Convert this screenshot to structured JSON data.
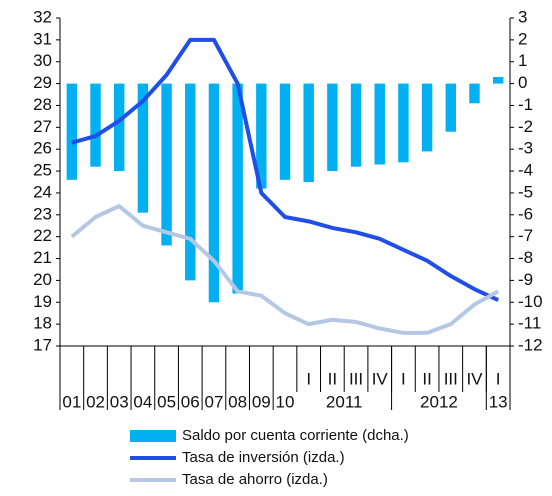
{
  "chart_data": {
    "type": "combo",
    "categories": [
      "01",
      "02",
      "03",
      "04",
      "05",
      "06",
      "07",
      "08",
      "09",
      "10",
      "I",
      "II",
      "III",
      "IV",
      "I",
      "II",
      "III",
      "IV",
      "I"
    ],
    "category_groups": [
      {
        "label": "2011",
        "size": 4
      },
      {
        "label": "2012",
        "size": 4
      },
      {
        "label": "13",
        "size": 1
      }
    ],
    "series": [
      {
        "name": "Saldo por cuenta corriente (dcha.)",
        "type": "bar",
        "axis": "y2",
        "color": "#00b0f0",
        "values": [
          -4.4,
          -3.8,
          -4.0,
          -5.9,
          -7.4,
          -9.0,
          -10.0,
          -9.6,
          -4.8,
          -4.4,
          -4.5,
          -4.0,
          -3.8,
          -3.7,
          -3.6,
          -3.1,
          -2.2,
          -0.9,
          0.3
        ]
      },
      {
        "name": "Tasa de inversión (izda.)",
        "type": "line",
        "color": "#1f4ee8",
        "values": [
          26.3,
          26.6,
          27.3,
          28.2,
          29.4,
          31.0,
          31.0,
          29.0,
          24.0,
          22.9,
          22.7,
          22.4,
          22.2,
          21.9,
          21.4,
          20.9,
          20.2,
          19.6,
          19.1
        ]
      },
      {
        "name": "Tasa de ahorro (izda.)",
        "type": "line",
        "color": "#b4c8e6",
        "values": [
          22.0,
          22.9,
          23.4,
          22.5,
          22.2,
          21.9,
          20.9,
          19.5,
          19.3,
          18.5,
          18.0,
          18.2,
          18.1,
          17.8,
          17.6,
          17.6,
          18.0,
          18.9,
          19.5
        ]
      }
    ],
    "ylim": [
      17,
      32
    ],
    "yticks": [
      17,
      18,
      19,
      20,
      21,
      22,
      23,
      24,
      25,
      26,
      27,
      28,
      29,
      30,
      31,
      32
    ],
    "y2lim": [
      -12,
      3
    ],
    "y2ticks": [
      -12,
      -11,
      -10,
      -9,
      -8,
      -7,
      -6,
      -5,
      -4,
      -3,
      -2,
      -1,
      0,
      1,
      2,
      3
    ]
  }
}
